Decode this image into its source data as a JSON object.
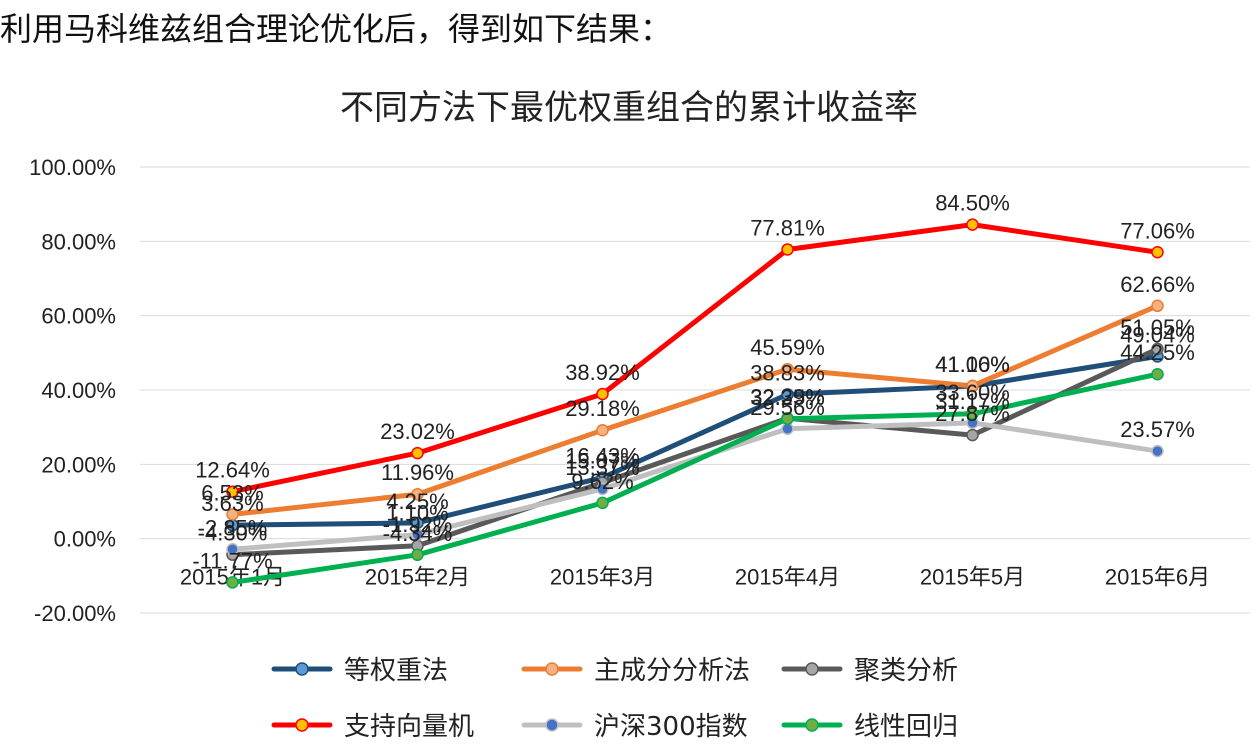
{
  "intro_text": "利用马科维兹组合理论优化后，得到如下结果：",
  "chart_data": {
    "type": "line",
    "title": "不同方法下最优权重组合的累计收益率",
    "xlabel": "",
    "ylabel": "",
    "categories": [
      "2015年1月",
      "2015年2月",
      "2015年3月",
      "2015年4月",
      "2015年5月",
      "2015年6月"
    ],
    "ylim": [
      -20,
      100
    ],
    "yticks": [
      "100.00%",
      "80.00%",
      "60.00%",
      "40.00%",
      "20.00%",
      "0.00%",
      "-20.00%"
    ],
    "grid": true,
    "legend_position": "bottom",
    "series": [
      {
        "name": "等权重法",
        "color": "#1f4e79",
        "values": [
          3.63,
          4.25,
          16.43,
          38.83,
          41.06,
          49.04
        ],
        "labels": [
          "3.63%",
          "4.25%",
          "16.43%",
          "38.83%",
          "41.06%",
          "49.04%"
        ]
      },
      {
        "name": "主成分分析法",
        "color": "#ed7d31",
        "values": [
          6.53,
          11.96,
          29.18,
          45.59,
          41.1,
          62.66
        ],
        "labels": [
          "6.53%",
          "11.96%",
          "29.18%",
          "45.59%",
          "41.10%",
          "62.66%"
        ]
      },
      {
        "name": "聚类分析",
        "color": "#595959",
        "values": [
          -4.3,
          -1.92,
          15.07,
          32.39,
          27.87,
          51.05
        ],
        "labels": [
          "-4.30%",
          "-1.92%",
          "15.07%",
          "32.39%",
          "27.87%",
          "51.05%"
        ]
      },
      {
        "name": "支持向量机",
        "color": "#ff0000",
        "values": [
          12.64,
          23.02,
          38.92,
          77.81,
          84.5,
          77.06
        ],
        "labels": [
          "12.64%",
          "23.02%",
          "38.92%",
          "77.81%",
          "84.50%",
          "77.06%"
        ]
      },
      {
        "name": "沪深300指数",
        "color": "#bfbfbf",
        "values": [
          -2.85,
          1.1,
          13.37,
          29.56,
          31.17,
          23.57
        ],
        "labels": [
          "-2.85%",
          "1.10%",
          "13.37%",
          "29.56%",
          "31.17%",
          "23.57%"
        ]
      },
      {
        "name": "线性回归",
        "color": "#00b050",
        "values": [
          -11.77,
          -4.34,
          9.62,
          32.25,
          33.6,
          44.25
        ],
        "labels": [
          "-11.77%",
          "-4.34%",
          "9.62%",
          "32.25%",
          "33.60%",
          "44.25%"
        ]
      }
    ]
  }
}
